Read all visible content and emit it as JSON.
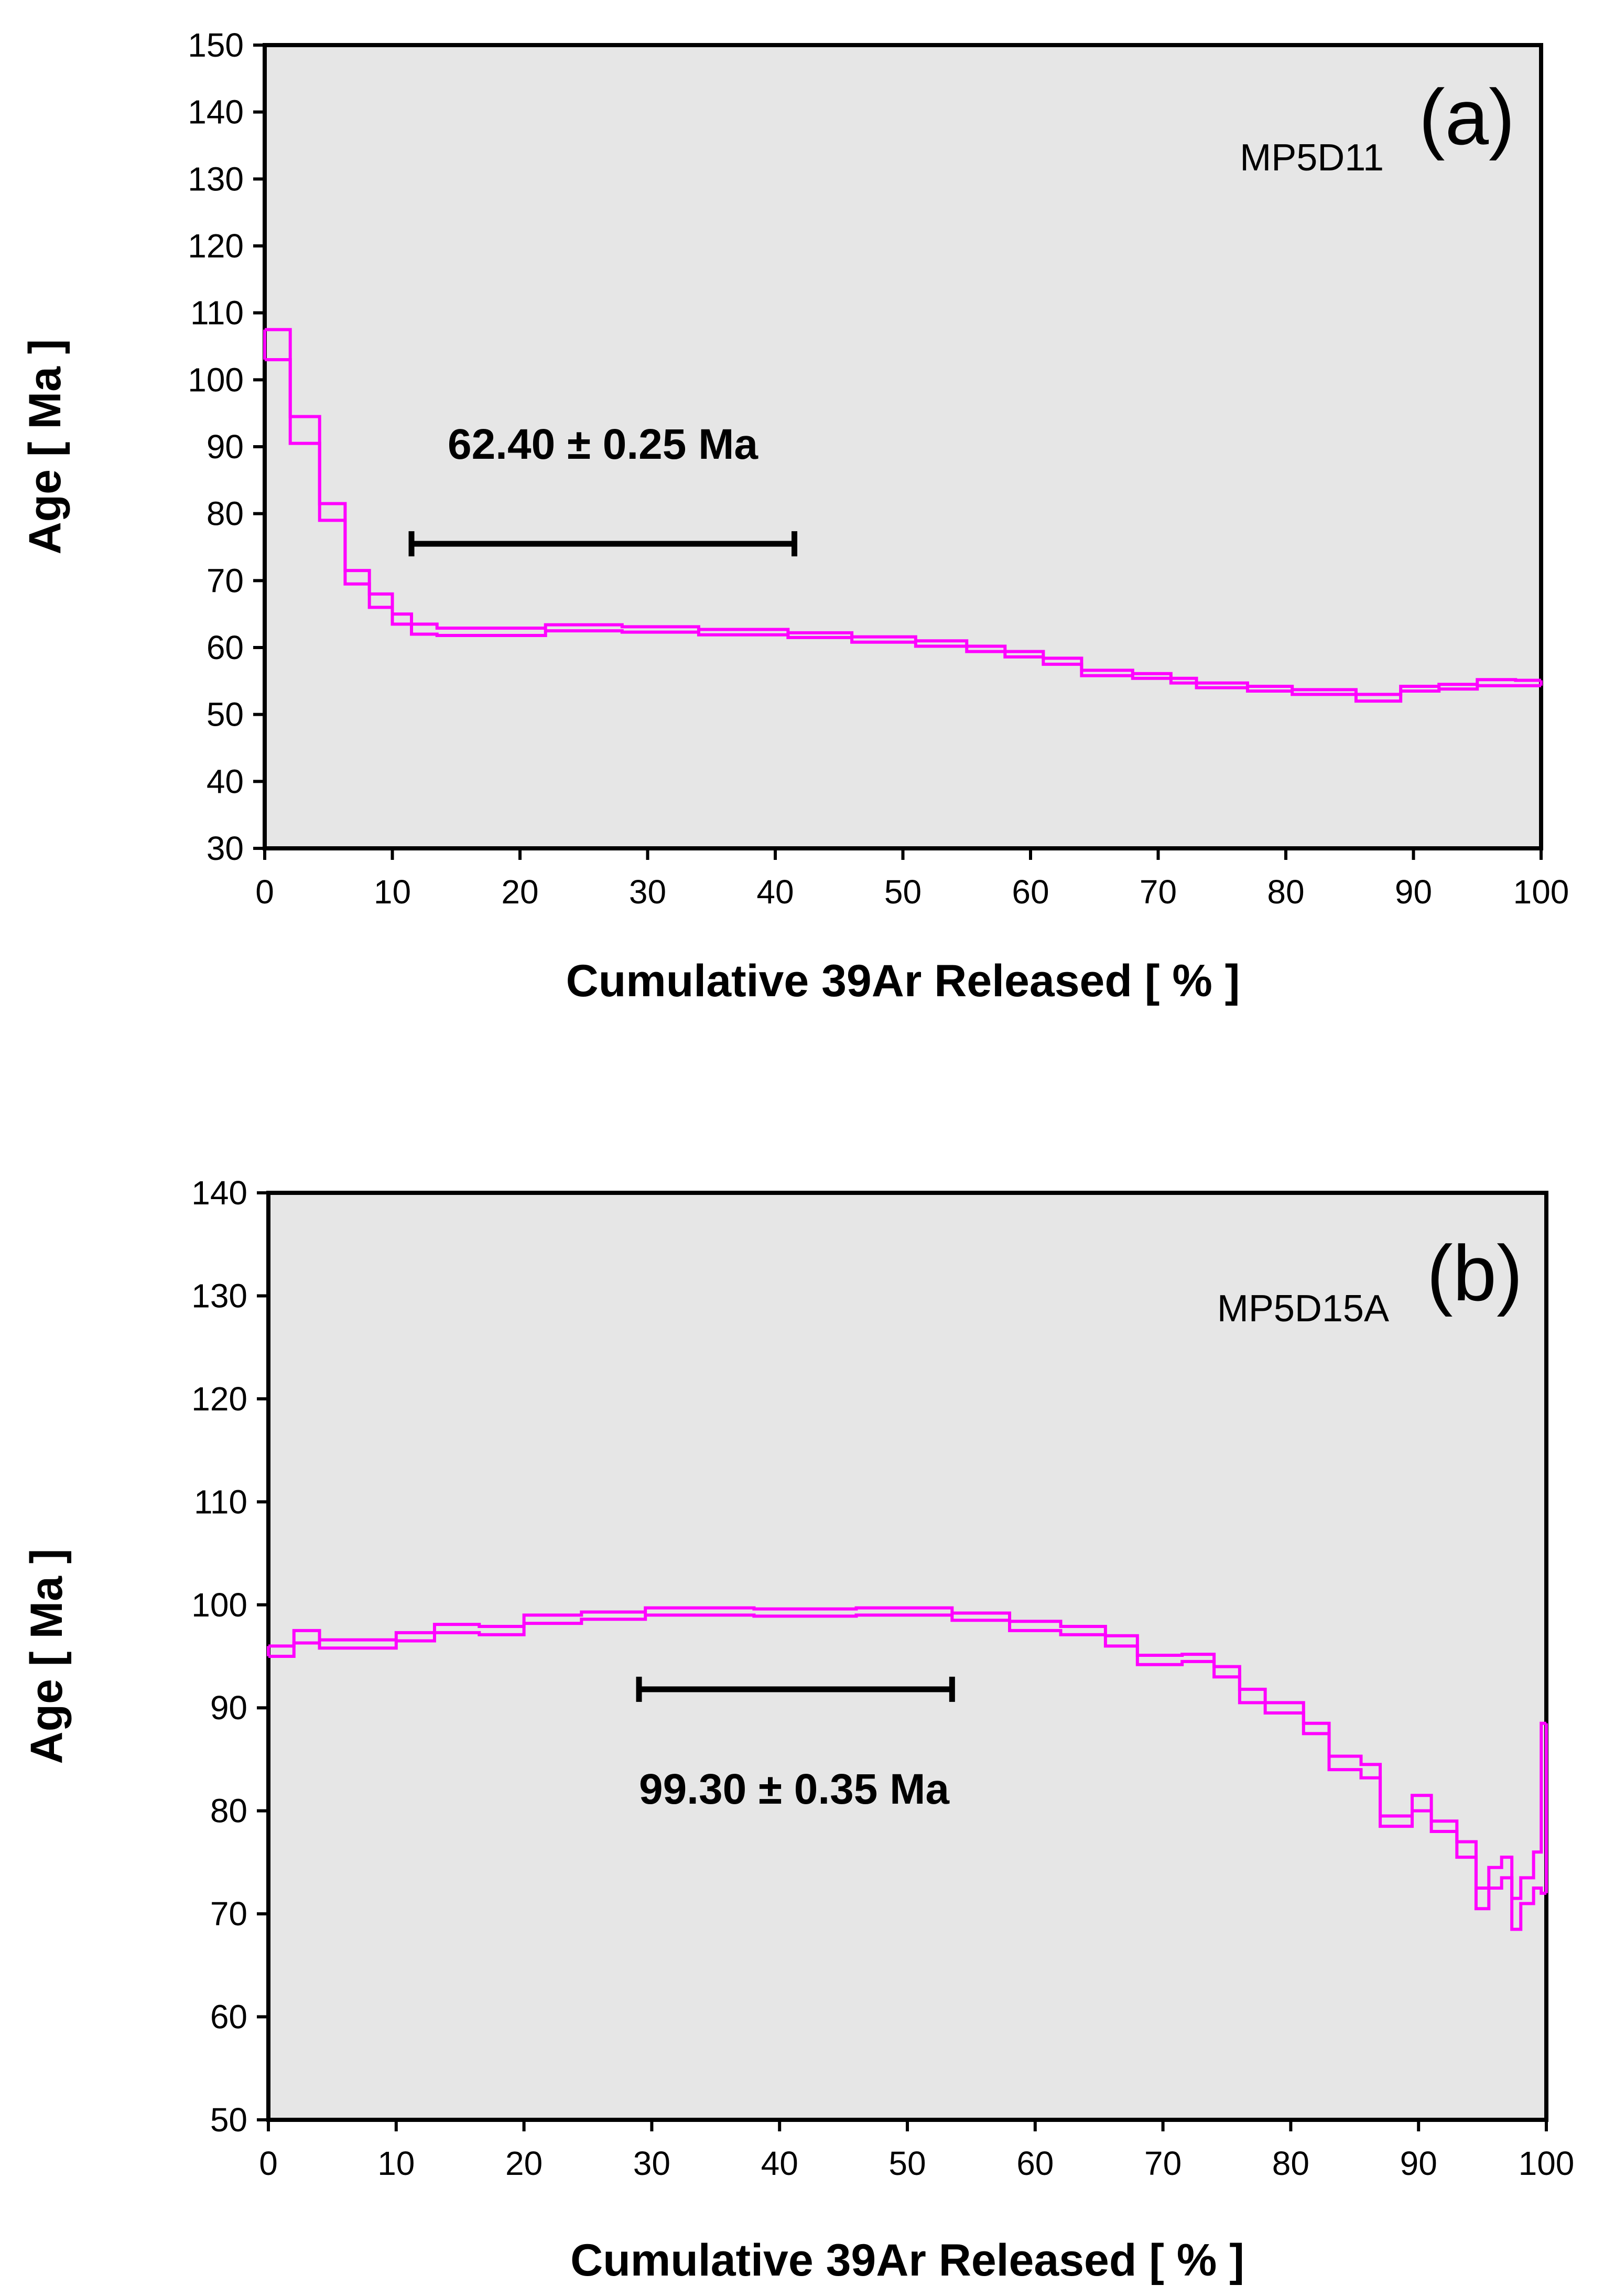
{
  "chart_data": [
    {
      "type": "line",
      "subtype": "step-spectrum",
      "panel": "(a)",
      "sample": "MP5D11",
      "xlabel": "Cumulative 39Ar Released [ % ]",
      "ylabel": "Age [ Ma ]",
      "xlim": [
        0,
        100
      ],
      "ylim": [
        30,
        150
      ],
      "xticks": [
        0,
        10,
        20,
        30,
        40,
        50,
        60,
        70,
        80,
        90,
        100
      ],
      "yticks": [
        30,
        40,
        50,
        60,
        70,
        80,
        90,
        100,
        110,
        120,
        130,
        140,
        150
      ],
      "plateau": {
        "from": 11.5,
        "to": 41.5,
        "age": 75.5,
        "label": "62.40 ± 0.25 Ma"
      },
      "steps": [
        {
          "x0": 0,
          "x1": 2,
          "lo": 103,
          "hi": 107.5
        },
        {
          "x0": 2,
          "x1": 4.3,
          "lo": 90.5,
          "hi": 94.5
        },
        {
          "x0": 4.3,
          "x1": 6.3,
          "lo": 79,
          "hi": 81.5
        },
        {
          "x0": 6.3,
          "x1": 8.2,
          "lo": 69.5,
          "hi": 71.5
        },
        {
          "x0": 8.2,
          "x1": 10,
          "lo": 66,
          "hi": 68
        },
        {
          "x0": 10,
          "x1": 11.5,
          "lo": 63.5,
          "hi": 65
        },
        {
          "x0": 11.5,
          "x1": 13.5,
          "lo": 62,
          "hi": 63.5
        },
        {
          "x0": 13.5,
          "x1": 22,
          "lo": 61.8,
          "hi": 62.9
        },
        {
          "x0": 22,
          "x1": 28,
          "lo": 62.5,
          "hi": 63.4
        },
        {
          "x0": 28,
          "x1": 34,
          "lo": 62.3,
          "hi": 63.1
        },
        {
          "x0": 34,
          "x1": 41,
          "lo": 61.9,
          "hi": 62.7
        },
        {
          "x0": 41,
          "x1": 46,
          "lo": 61.5,
          "hi": 62.2
        },
        {
          "x0": 46,
          "x1": 51,
          "lo": 60.8,
          "hi": 61.6
        },
        {
          "x0": 51,
          "x1": 55,
          "lo": 60.2,
          "hi": 61
        },
        {
          "x0": 55,
          "x1": 58,
          "lo": 59.4,
          "hi": 60.2
        },
        {
          "x0": 58,
          "x1": 61,
          "lo": 58.6,
          "hi": 59.4
        },
        {
          "x0": 61,
          "x1": 64,
          "lo": 57.5,
          "hi": 58.4
        },
        {
          "x0": 64,
          "x1": 68,
          "lo": 55.8,
          "hi": 56.6
        },
        {
          "x0": 68,
          "x1": 71,
          "lo": 55.4,
          "hi": 56.1
        },
        {
          "x0": 71,
          "x1": 73,
          "lo": 54.7,
          "hi": 55.4
        },
        {
          "x0": 73,
          "x1": 77,
          "lo": 54,
          "hi": 54.7
        },
        {
          "x0": 77,
          "x1": 80.5,
          "lo": 53.5,
          "hi": 54.2
        },
        {
          "x0": 80.5,
          "x1": 85.5,
          "lo": 53,
          "hi": 53.7
        },
        {
          "x0": 85.5,
          "x1": 89,
          "lo": 52,
          "hi": 53
        },
        {
          "x0": 89,
          "x1": 92,
          "lo": 53.5,
          "hi": 54.2
        },
        {
          "x0": 92,
          "x1": 95,
          "lo": 53.8,
          "hi": 54.5
        },
        {
          "x0": 95,
          "x1": 98,
          "lo": 54.3,
          "hi": 55.2
        },
        {
          "x0": 98,
          "x1": 100,
          "lo": 54.3,
          "hi": 55.1
        }
      ]
    },
    {
      "type": "line",
      "subtype": "step-spectrum",
      "panel": "(b)",
      "sample": "MP5D15A",
      "xlabel": "Cumulative 39Ar Released [ % ]",
      "ylabel": "Age [ Ma ]",
      "xlim": [
        0,
        100
      ],
      "ylim": [
        50,
        140
      ],
      "xticks": [
        0,
        10,
        20,
        30,
        40,
        50,
        60,
        70,
        80,
        90,
        100
      ],
      "yticks": [
        50,
        60,
        70,
        80,
        90,
        100,
        110,
        120,
        130,
        140
      ],
      "plateau": {
        "from": 29,
        "to": 53.5,
        "age": 91.8,
        "label": "99.30 ± 0.35 Ma"
      },
      "steps": [
        {
          "x0": 0,
          "x1": 2,
          "lo": 95,
          "hi": 96
        },
        {
          "x0": 2,
          "x1": 4,
          "lo": 96.3,
          "hi": 97.5
        },
        {
          "x0": 4,
          "x1": 10,
          "lo": 95.8,
          "hi": 96.6
        },
        {
          "x0": 10,
          "x1": 13,
          "lo": 96.5,
          "hi": 97.3
        },
        {
          "x0": 13,
          "x1": 16.5,
          "lo": 97.3,
          "hi": 98.1
        },
        {
          "x0": 16.5,
          "x1": 20,
          "lo": 97.1,
          "hi": 97.9
        },
        {
          "x0": 20,
          "x1": 24.5,
          "lo": 98.2,
          "hi": 99
        },
        {
          "x0": 24.5,
          "x1": 29.5,
          "lo": 98.6,
          "hi": 99.3
        },
        {
          "x0": 29.5,
          "x1": 38,
          "lo": 99,
          "hi": 99.7
        },
        {
          "x0": 38,
          "x1": 46,
          "lo": 98.9,
          "hi": 99.6
        },
        {
          "x0": 46,
          "x1": 53.5,
          "lo": 99,
          "hi": 99.7
        },
        {
          "x0": 53.5,
          "x1": 58,
          "lo": 98.5,
          "hi": 99.2
        },
        {
          "x0": 58,
          "x1": 62,
          "lo": 97.5,
          "hi": 98.4
        },
        {
          "x0": 62,
          "x1": 65.5,
          "lo": 97.1,
          "hi": 97.9
        },
        {
          "x0": 65.5,
          "x1": 68,
          "lo": 96,
          "hi": 97
        },
        {
          "x0": 68,
          "x1": 71.5,
          "lo": 94.2,
          "hi": 95.1
        },
        {
          "x0": 71.5,
          "x1": 74,
          "lo": 94.5,
          "hi": 95.2
        },
        {
          "x0": 74,
          "x1": 76,
          "lo": 93,
          "hi": 94
        },
        {
          "x0": 76,
          "x1": 78,
          "lo": 90.5,
          "hi": 91.8
        },
        {
          "x0": 78,
          "x1": 81,
          "lo": 89.5,
          "hi": 90.5
        },
        {
          "x0": 81,
          "x1": 83,
          "lo": 87.5,
          "hi": 88.5
        },
        {
          "x0": 83,
          "x1": 85.5,
          "lo": 84,
          "hi": 85.3
        },
        {
          "x0": 85.5,
          "x1": 87,
          "lo": 83.2,
          "hi": 84.5
        },
        {
          "x0": 87,
          "x1": 89.5,
          "lo": 78.5,
          "hi": 79.5
        },
        {
          "x0": 89.5,
          "x1": 91,
          "lo": 80,
          "hi": 81.5
        },
        {
          "x0": 91,
          "x1": 93,
          "lo": 78,
          "hi": 79
        },
        {
          "x0": 93,
          "x1": 94.5,
          "lo": 75.5,
          "hi": 77
        },
        {
          "x0": 94.5,
          "x1": 95.5,
          "lo": 70.5,
          "hi": 72.5
        },
        {
          "x0": 95.5,
          "x1": 96.5,
          "lo": 72.5,
          "hi": 74.5
        },
        {
          "x0": 96.5,
          "x1": 97.3,
          "lo": 73.5,
          "hi": 75.5
        },
        {
          "x0": 97.3,
          "x1": 98,
          "lo": 68.5,
          "hi": 71.5
        },
        {
          "x0": 98,
          "x1": 99,
          "lo": 71,
          "hi": 73.5
        },
        {
          "x0": 99,
          "x1": 99.6,
          "lo": 72.5,
          "hi": 76
        },
        {
          "x0": 99.6,
          "x1": 100,
          "lo": 72,
          "hi": 88.5
        }
      ]
    }
  ]
}
